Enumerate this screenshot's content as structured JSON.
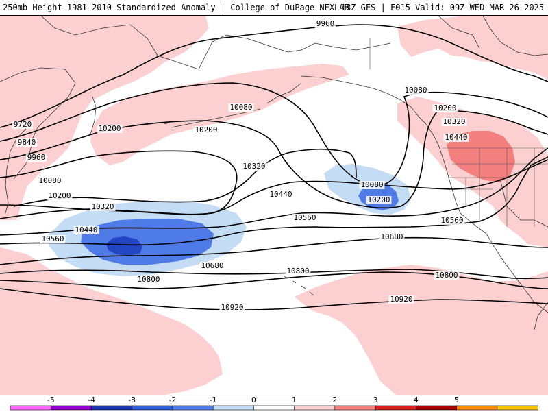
{
  "header": {
    "left": "250mb Height 1981-2010 Standardized Anomaly | College of DuPage NEXLAB",
    "right": "18Z GFS | F015 Valid: 09Z WED MAR 26 2025"
  },
  "map": {
    "contour_labels": [
      "9720",
      "9840",
      "9960",
      "9960",
      "10080",
      "10080",
      "10080",
      "10080",
      "10200",
      "10200",
      "10200",
      "10200",
      "10200",
      "10320",
      "10320",
      "10320",
      "10440",
      "10440",
      "10440",
      "10560",
      "10560",
      "10560",
      "10680",
      "10680",
      "10800",
      "10800",
      "10800",
      "10920",
      "10920"
    ]
  },
  "colors": {
    "anom_pos1": "#fcd0d0",
    "anom_pos2": "#f47f7f",
    "anom_neg1": "#c5dcf5",
    "anom_neg2": "#4f7be6",
    "anom_neg3": "#2245c3",
    "contour": "#000000",
    "coast": "#333333"
  },
  "legend": {
    "labels": [
      "-5",
      "-4",
      "-3",
      "-2",
      "-1",
      "0",
      "1",
      "2",
      "3",
      "4",
      "5"
    ],
    "colors": [
      "#ff66ff",
      "#9400d3",
      "#1a37b0",
      "#2f5fd9",
      "#4f7be6",
      "#c5dcf5",
      "#ffffff",
      "#fcd0d0",
      "#f47f7f",
      "#e02020",
      "#a80000",
      "#ff8c00",
      "#f5c200"
    ]
  }
}
